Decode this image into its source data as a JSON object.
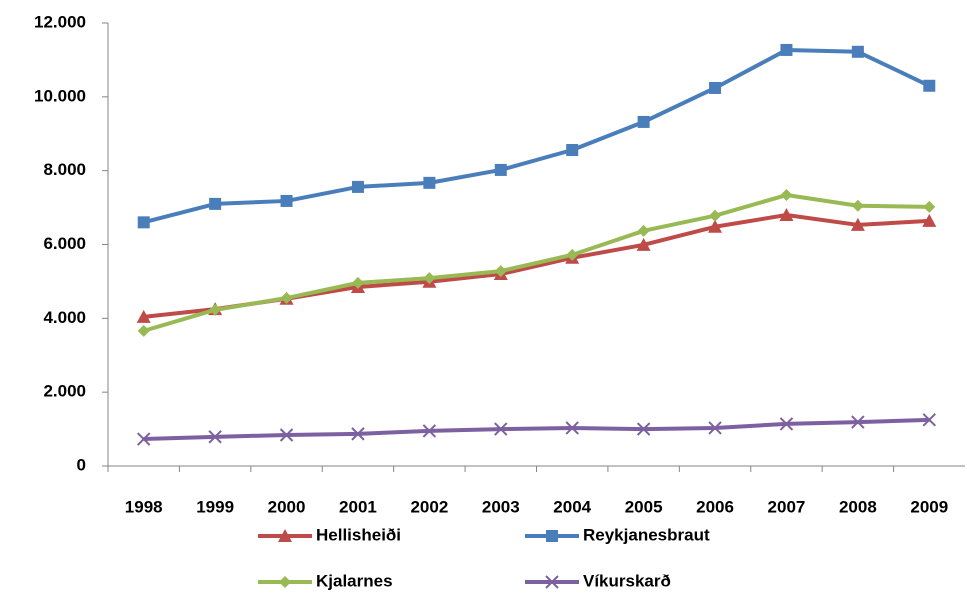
{
  "chart_data": {
    "type": "line",
    "categories": [
      "1998",
      "1999",
      "2000",
      "2001",
      "2002",
      "2003",
      "2004",
      "2005",
      "2006",
      "2007",
      "2008",
      "2009"
    ],
    "series": [
      {
        "name": "Hellisheiði",
        "color": "#be4b48",
        "marker": "triangle",
        "values": [
          4040,
          4250,
          4530,
          4850,
          4990,
          5200,
          5640,
          5990,
          6480,
          6800,
          6530,
          6640
        ]
      },
      {
        "name": "Reykjanesbraut",
        "color": "#4a7ebb",
        "marker": "square",
        "values": [
          6600,
          7100,
          7180,
          7560,
          7670,
          8020,
          8560,
          9320,
          10240,
          11270,
          11220,
          10300
        ]
      },
      {
        "name": "Kjalarnes",
        "color": "#98b954",
        "marker": "diamond",
        "values": [
          3660,
          4230,
          4550,
          4960,
          5090,
          5280,
          5720,
          6370,
          6780,
          7340,
          7050,
          7020
        ]
      },
      {
        "name": "Víkurskarð",
        "color": "#7d60a0",
        "marker": "x",
        "values": [
          730,
          790,
          840,
          870,
          950,
          1000,
          1030,
          1000,
          1030,
          1140,
          1190,
          1250
        ]
      }
    ],
    "ylim": [
      0,
      12000
    ],
    "yticks": [
      0,
      {
        "value": 2000,
        "label": "2.000"
      },
      {
        "value": 4000,
        "label": "4.000"
      },
      {
        "value": 6000,
        "label": "6.000"
      },
      {
        "value": 8000,
        "label": "8.000"
      },
      {
        "value": 10000,
        "label": "10.000"
      },
      {
        "value": 12000,
        "label": "12.000"
      }
    ],
    "grid": false,
    "legend": "bottom"
  }
}
